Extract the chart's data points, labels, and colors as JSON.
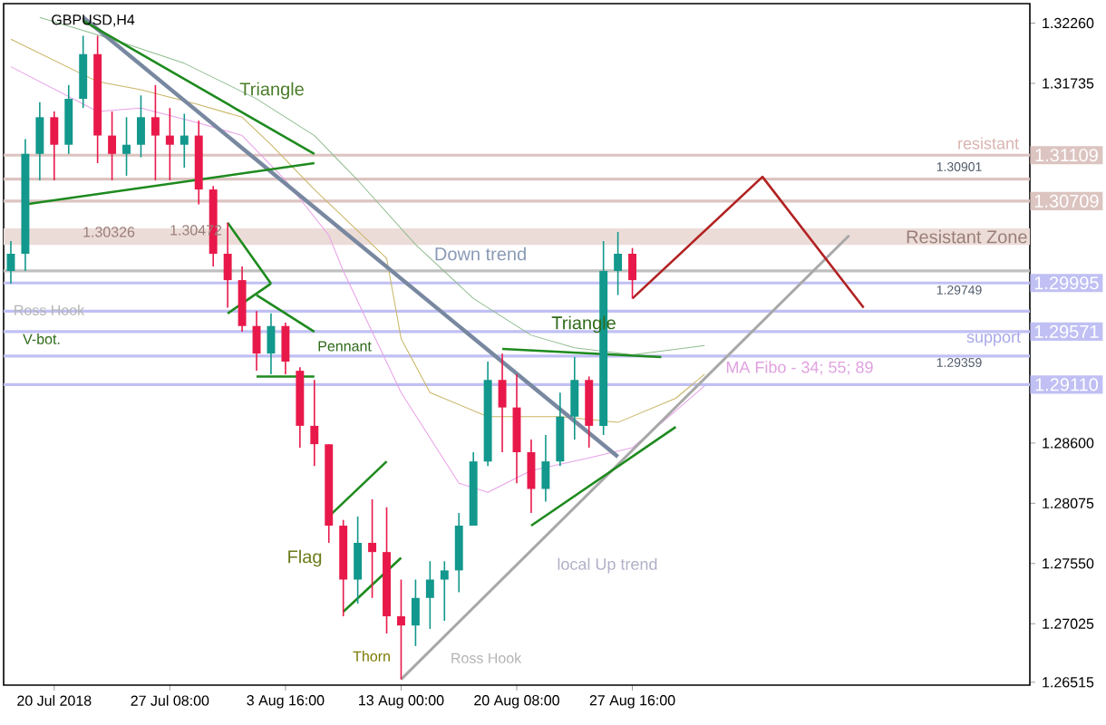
{
  "chart_data": {
    "type": "candlestick",
    "title": "GBPUSD,H4",
    "categories": [
      null,
      null,
      null,
      "20 Jul 2018",
      null,
      null,
      null,
      null,
      null,
      null,
      null,
      "27 Jul 08:00",
      null,
      null,
      null,
      null,
      null,
      null,
      null,
      "3 Aug 16:00",
      null,
      null,
      null,
      null,
      null,
      null,
      null,
      "13 Aug 00:00",
      null,
      null,
      null,
      null,
      null,
      null,
      null,
      "20 Aug 08:00",
      null,
      null,
      null,
      null,
      null,
      null,
      null,
      "27 Aug 16:00",
      null,
      null,
      null,
      null,
      null,
      null,
      null,
      null,
      null,
      null,
      null,
      null,
      null,
      null,
      null,
      null,
      null,
      null,
      null,
      null,
      null,
      null,
      null,
      null,
      null,
      null,
      null
    ],
    "ohlc": [
      [
        1.301,
        1.3036,
        1.2999,
        1.3025
      ],
      [
        1.3025,
        1.3125,
        1.301,
        1.3112
      ],
      [
        1.3112,
        1.3157,
        1.3089,
        1.3144
      ],
      [
        1.3144,
        1.3149,
        1.3089,
        1.312
      ],
      [
        1.312,
        1.3172,
        1.3112,
        1.316
      ],
      [
        1.316,
        1.3215,
        1.3152,
        1.3199
      ],
      [
        1.3199,
        1.3215,
        1.3104,
        1.3128
      ],
      [
        1.3128,
        1.3149,
        1.3089,
        1.3112
      ],
      [
        1.3112,
        1.3144,
        1.3093,
        1.312
      ],
      [
        1.312,
        1.3163,
        1.3109,
        1.3144
      ],
      [
        1.3144,
        1.3172,
        1.3089,
        1.3128
      ],
      [
        1.3128,
        1.3152,
        1.3089,
        1.312
      ],
      [
        1.312,
        1.3147,
        1.31,
        1.3128
      ],
      [
        1.3128,
        1.3141,
        1.3068,
        1.3081
      ],
      [
        1.3081,
        1.3084,
        1.3014,
        1.3025
      ],
      [
        1.3025,
        1.3052,
        1.2978,
        1.3002
      ],
      [
        1.3002,
        1.3014,
        1.2957,
        1.2962
      ],
      [
        1.2962,
        1.2975,
        1.2923,
        1.2938
      ],
      [
        1.2938,
        1.2973,
        1.292,
        1.2962
      ],
      [
        1.2962,
        1.2965,
        1.292,
        1.2931
      ],
      [
        1.2923,
        1.2926,
        1.2856,
        1.2875
      ],
      [
        1.2875,
        1.2915,
        1.284,
        1.2859
      ],
      [
        1.2859,
        1.2859,
        1.2773,
        1.2788
      ],
      [
        1.2788,
        1.2793,
        1.2709,
        1.2741
      ],
      [
        1.2741,
        1.2796,
        1.272,
        1.2773
      ],
      [
        1.2773,
        1.2811,
        1.2725,
        1.2765
      ],
      [
        1.2765,
        1.2804,
        1.2694,
        1.2709
      ],
      [
        1.2709,
        1.2741,
        1.2654,
        1.2701
      ],
      [
        1.2701,
        1.2741,
        1.2683,
        1.2725
      ],
      [
        1.2725,
        1.2757,
        1.2698,
        1.2741
      ],
      [
        1.2741,
        1.2757,
        1.2705,
        1.2749
      ],
      [
        1.2749,
        1.2799,
        1.273,
        1.2788
      ],
      [
        1.2788,
        1.2852,
        1.2788,
        1.2844
      ],
      [
        1.2844,
        1.2931,
        1.284,
        1.2915
      ],
      [
        1.2915,
        1.2938,
        1.2852,
        1.2891
      ],
      [
        1.2891,
        1.292,
        1.2825,
        1.2852
      ],
      [
        1.2852,
        1.2863,
        1.2799,
        1.282
      ],
      [
        1.282,
        1.2867,
        1.2809,
        1.2844
      ],
      [
        1.2844,
        1.2904,
        1.284,
        1.2883
      ],
      [
        1.2883,
        1.2935,
        1.2863,
        1.2915
      ],
      [
        1.2915,
        1.2918,
        1.2856,
        1.2875
      ],
      [
        1.2875,
        1.3036,
        1.2867,
        1.301
      ],
      [
        1.301,
        1.3044,
        1.2989,
        1.3025
      ],
      [
        1.3025,
        1.303,
        1.2986,
        1.3002
      ],
      null,
      null,
      null,
      null,
      null,
      null,
      null,
      null,
      null,
      null,
      null,
      null,
      null,
      null,
      null,
      null,
      null,
      null,
      null,
      null,
      null,
      null,
      null,
      null,
      null,
      null,
      null
    ],
    "colors": [
      "#12988c",
      "#12988c",
      "#12988c",
      "#e8194a",
      "#12988c",
      "#12988c",
      "#e8194a",
      "#e8194a",
      "#12988c",
      "#12988c",
      "#e8194a",
      "#e8194a",
      "#12988c",
      "#e8194a",
      "#e8194a",
      "#e8194a",
      "#e8194a",
      "#e8194a",
      "#12988c",
      "#e8194a",
      "#e8194a",
      "#e8194a",
      "#e8194a",
      "#e8194a",
      "#12988c",
      "#e8194a",
      "#e8194a",
      "#e8194a",
      "#12988c",
      "#12988c",
      "#12988c",
      "#12988c",
      "#12988c",
      "#12988c",
      "#e8194a",
      "#e8194a",
      "#e8194a",
      "#12988c",
      "#12988c",
      "#12988c",
      "#e8194a",
      "#12988c",
      "#12988c",
      "#e8194a",
      null,
      null,
      null,
      null,
      null,
      null,
      null,
      null,
      null,
      null,
      null,
      null,
      null,
      null,
      null,
      null,
      null,
      null,
      null,
      null,
      null,
      null,
      null,
      null,
      null,
      null,
      null
    ],
    "ylim": [
      1.2649,
      1.3243
    ],
    "yticks": [
      {
        "value": 1.3226,
        "label": "1.32260"
      },
      {
        "value": 1.31735,
        "label": "1.31735"
      },
      {
        "value": 1.286,
        "label": "1.28600"
      },
      {
        "value": 1.28075,
        "label": "1.28075"
      },
      {
        "value": 1.2755,
        "label": "1.27550"
      },
      {
        "value": 1.27025,
        "label": "1.27025"
      },
      {
        "value": 1.26515,
        "label": "1.26515"
      }
    ],
    "series": [
      {
        "type": "line",
        "color": "#8fbc8f",
        "values": [
          null,
          null,
          1.3231,
          null,
          null,
          null,
          null,
          1.3212,
          null,
          null,
          null,
          null,
          1.3191,
          null,
          null,
          null,
          null,
          1.316,
          null,
          null,
          null,
          1.3128,
          null,
          null,
          1.3089,
          null,
          null,
          null,
          1.3033,
          null,
          null,
          null,
          1.2986,
          null,
          null,
          null,
          1.2954,
          null,
          null,
          1.2943,
          null,
          null,
          null,
          1.2937,
          null,
          null,
          null,
          null,
          1.2945,
          null,
          null,
          null,
          null,
          null,
          null,
          null,
          null,
          null,
          null,
          null,
          null,
          null,
          null,
          null,
          null,
          null,
          null,
          null,
          null,
          null,
          null
        ]
      },
      {
        "type": "line",
        "color": "#c8b464",
        "values": [
          1.3212,
          null,
          null,
          null,
          null,
          null,
          1.3175,
          null,
          null,
          1.3168,
          null,
          null,
          null,
          1.3155,
          null,
          null,
          1.3144,
          null,
          1.312,
          null,
          null,
          1.3081,
          null,
          null,
          null,
          null,
          1.3021,
          1.2951,
          null,
          1.2904,
          null,
          null,
          null,
          1.2883,
          null,
          null,
          null,
          null,
          1.2883,
          null,
          null,
          null,
          1.2878,
          null,
          null,
          null,
          1.2899,
          null,
          1.292,
          null,
          null,
          null,
          null,
          null,
          null,
          null,
          null,
          null,
          null,
          null,
          null,
          null,
          null,
          null,
          null,
          null,
          null,
          null,
          null,
          null,
          null
        ]
      },
      {
        "type": "line",
        "color": "#e8a0e8",
        "values": [
          1.3188,
          null,
          null,
          null,
          null,
          null,
          1.3149,
          null,
          null,
          1.3152,
          null,
          null,
          null,
          1.3139,
          null,
          null,
          1.3128,
          null,
          null,
          1.3089,
          null,
          null,
          1.3041,
          1.301,
          null,
          null,
          null,
          1.2904,
          null,
          null,
          null,
          1.2825,
          null,
          1.2817,
          null,
          null,
          1.2836,
          null,
          null,
          null,
          1.2847,
          null,
          null,
          1.2856,
          null,
          null,
          1.2888,
          null,
          1.291,
          null,
          null,
          null,
          null,
          null,
          null,
          null,
          null,
          null,
          null,
          null,
          null,
          null,
          null,
          null,
          null,
          null,
          null,
          null,
          null,
          null,
          null
        ]
      },
      {
        "type": "line",
        "color": "#7888a0",
        "values": [
          null,
          null,
          null,
          null,
          null,
          1.3231,
          null,
          null,
          null,
          null,
          null,
          null,
          null,
          null,
          null,
          null,
          null,
          null,
          null,
          null,
          null,
          null,
          null,
          null,
          null,
          null,
          null,
          null,
          null,
          null,
          null,
          null,
          null,
          null,
          null,
          null,
          null,
          null,
          null,
          null,
          null,
          null,
          1.2848,
          null,
          null,
          null,
          null,
          null,
          null,
          null,
          null,
          null,
          null,
          null,
          null,
          null,
          null,
          null,
          null,
          null,
          null,
          null,
          null,
          null,
          null,
          null,
          null,
          null,
          null,
          null,
          null
        ]
      },
      {
        "type": "line",
        "color": "#a8a8a8",
        "values": [
          null,
          null,
          null,
          null,
          null,
          null,
          null,
          null,
          null,
          null,
          null,
          null,
          null,
          null,
          null,
          null,
          null,
          null,
          null,
          null,
          null,
          null,
          null,
          null,
          null,
          null,
          null,
          1.2654,
          null,
          null,
          null,
          null,
          null,
          null,
          null,
          null,
          null,
          null,
          null,
          null,
          null,
          null,
          null,
          null,
          null,
          null,
          null,
          null,
          null,
          null,
          null,
          null,
          null,
          null,
          null,
          null,
          null,
          null,
          1.3041,
          null,
          null,
          null,
          null,
          null,
          null,
          null,
          null,
          null,
          null,
          null,
          null
        ]
      },
      {
        "type": "line",
        "color": "#b22222",
        "values": [
          null,
          null,
          null,
          null,
          null,
          null,
          null,
          null,
          null,
          null,
          null,
          null,
          null,
          null,
          null,
          null,
          null,
          null,
          null,
          null,
          null,
          null,
          null,
          null,
          null,
          null,
          null,
          null,
          null,
          null,
          null,
          null,
          null,
          null,
          null,
          null,
          null,
          null,
          null,
          null,
          null,
          null,
          null,
          1.2986,
          null,
          null,
          null,
          null,
          null,
          null,
          null,
          null,
          1.3092,
          null,
          null,
          null,
          null,
          null,
          null,
          1.2978,
          null,
          null,
          null,
          null,
          null,
          null,
          null,
          null,
          null,
          null,
          null
        ]
      },
      {
        "type": "line",
        "color": "#1e8a1e",
        "values": [
          null,
          null,
          null,
          null,
          null,
          1.3228,
          null,
          null,
          null,
          null,
          null,
          null,
          null,
          null,
          null,
          null,
          null,
          null,
          null,
          null,
          null,
          1.3112,
          null,
          null,
          null,
          null,
          null,
          null,
          null,
          null,
          null,
          null,
          null,
          null,
          null,
          null,
          null,
          null,
          null,
          null,
          null,
          null,
          null,
          null,
          null,
          null,
          null,
          null,
          null,
          null,
          null,
          null,
          null,
          null,
          null,
          null,
          null,
          null,
          null,
          null,
          null,
          null,
          null,
          null,
          null,
          null,
          null,
          null,
          null,
          null,
          null
        ]
      },
      {
        "type": "line",
        "color": "#1e8a1e",
        "values": [
          null,
          1.3068,
          null,
          null,
          null,
          null,
          null,
          null,
          null,
          null,
          null,
          null,
          null,
          null,
          null,
          null,
          null,
          null,
          null,
          null,
          null,
          1.3104,
          null,
          null,
          null,
          null,
          null,
          null,
          null,
          null,
          null,
          null,
          null,
          null,
          null,
          null,
          null,
          null,
          null,
          null,
          null,
          null,
          null,
          null,
          null,
          null,
          null,
          null,
          null,
          null,
          null,
          null,
          null,
          null,
          null,
          null,
          null,
          null,
          null,
          null,
          null,
          null,
          null,
          null,
          null,
          null,
          null,
          null,
          null,
          null,
          null
        ]
      },
      {
        "type": "line",
        "color": "#1e8a1e",
        "values": [
          null,
          null,
          null,
          null,
          null,
          null,
          null,
          null,
          null,
          null,
          null,
          null,
          null,
          null,
          null,
          1.3052,
          null,
          null,
          1.2999,
          null,
          null,
          null,
          null,
          null,
          null,
          null,
          null,
          null,
          null,
          null,
          null,
          null,
          null,
          null,
          null,
          null,
          null,
          null,
          null,
          null,
          null,
          null,
          null,
          null,
          null,
          null,
          null,
          null,
          null,
          null,
          null,
          null,
          null,
          null,
          null,
          null,
          null,
          null,
          null,
          null,
          null,
          null,
          null,
          null,
          null,
          null,
          null,
          null,
          null,
          null,
          null
        ]
      },
      {
        "type": "line",
        "color": "#1e8a1e",
        "values": [
          null,
          null,
          null,
          null,
          null,
          null,
          null,
          null,
          null,
          null,
          null,
          null,
          null,
          null,
          null,
          1.2973,
          null,
          null,
          1.2999,
          null,
          null,
          null,
          null,
          null,
          null,
          null,
          null,
          null,
          null,
          null,
          null,
          null,
          null,
          null,
          null,
          null,
          null,
          null,
          null,
          null,
          null,
          null,
          null,
          null,
          null,
          null,
          null,
          null,
          null,
          null,
          null,
          null,
          null,
          null,
          null,
          null,
          null,
          null,
          null,
          null,
          null,
          null,
          null,
          null,
          null,
          null,
          null,
          null,
          null,
          null,
          null
        ]
      },
      {
        "type": "line",
        "color": "#1e8a1e",
        "values": [
          null,
          null,
          null,
          null,
          null,
          null,
          null,
          null,
          null,
          null,
          null,
          null,
          null,
          null,
          null,
          null,
          null,
          1.2989,
          null,
          null,
          null,
          1.2957,
          null,
          null,
          null,
          null,
          null,
          null,
          null,
          null,
          null,
          null,
          null,
          null,
          null,
          null,
          null,
          null,
          null,
          null,
          null,
          null,
          null,
          null,
          null,
          null,
          null,
          null,
          null,
          null,
          null,
          null,
          null,
          null,
          null,
          null,
          null,
          null,
          null,
          null,
          null,
          null,
          null,
          null,
          null,
          null,
          null,
          null,
          null,
          null,
          null
        ]
      },
      {
        "type": "line",
        "color": "#1e8a1e",
        "values": [
          null,
          null,
          null,
          null,
          null,
          null,
          null,
          null,
          null,
          null,
          null,
          null,
          null,
          null,
          null,
          null,
          null,
          1.2918,
          null,
          null,
          null,
          1.2918,
          null,
          null,
          null,
          null,
          null,
          null,
          null,
          null,
          null,
          null,
          null,
          null,
          null,
          null,
          null,
          null,
          null,
          null,
          null,
          null,
          null,
          null,
          null,
          null,
          null,
          null,
          null,
          null,
          null,
          null,
          null,
          null,
          null,
          null,
          null,
          null,
          null,
          null,
          null,
          null,
          null,
          null,
          null,
          null,
          null,
          null,
          null,
          null,
          null
        ]
      },
      {
        "type": "line",
        "color": "#1e8a1e",
        "values": [
          null,
          null,
          null,
          null,
          null,
          null,
          null,
          null,
          null,
          null,
          null,
          null,
          null,
          null,
          null,
          null,
          null,
          null,
          null,
          null,
          null,
          null,
          1.2796,
          null,
          null,
          null,
          1.2844,
          null,
          null,
          null,
          null,
          null,
          null,
          null,
          null,
          null,
          null,
          null,
          null,
          null,
          null,
          null,
          null,
          null,
          null,
          null,
          null,
          null,
          null,
          null,
          null,
          null,
          null,
          null,
          null,
          null,
          null,
          null,
          null,
          null,
          null,
          null,
          null,
          null,
          null,
          null,
          null,
          null,
          null,
          null,
          null
        ]
      },
      {
        "type": "line",
        "color": "#1e8a1e",
        "values": [
          null,
          null,
          null,
          null,
          null,
          null,
          null,
          null,
          null,
          null,
          null,
          null,
          null,
          null,
          null,
          null,
          null,
          null,
          null,
          null,
          null,
          null,
          null,
          1.2713,
          null,
          null,
          null,
          1.276,
          null,
          null,
          null,
          null,
          null,
          null,
          null,
          null,
          null,
          null,
          null,
          null,
          null,
          null,
          null,
          null,
          null,
          null,
          null,
          null,
          null,
          null,
          null,
          null,
          null,
          null,
          null,
          null,
          null,
          null,
          null,
          null,
          null,
          null,
          null,
          null,
          null,
          null,
          null,
          null,
          null,
          null,
          null
        ]
      },
      {
        "type": "line",
        "color": "#1e8a1e",
        "values": [
          null,
          null,
          null,
          null,
          null,
          null,
          null,
          null,
          null,
          null,
          null,
          null,
          null,
          null,
          null,
          null,
          null,
          null,
          null,
          null,
          null,
          null,
          null,
          null,
          null,
          null,
          null,
          null,
          null,
          null,
          null,
          null,
          null,
          null,
          1.2942,
          null,
          null,
          null,
          null,
          null,
          null,
          null,
          null,
          null,
          null,
          1.2935,
          null,
          null,
          null,
          null,
          null,
          null,
          null,
          null,
          null,
          null,
          null,
          null,
          null,
          null,
          null,
          null,
          null,
          null,
          null,
          null,
          null,
          null,
          null,
          null,
          null
        ]
      },
      {
        "type": "line",
        "color": "#1e8a1e",
        "values": [
          null,
          null,
          null,
          null,
          null,
          null,
          null,
          null,
          null,
          null,
          null,
          null,
          null,
          null,
          null,
          null,
          null,
          null,
          null,
          null,
          null,
          null,
          null,
          null,
          null,
          null,
          null,
          null,
          null,
          null,
          null,
          null,
          null,
          null,
          null,
          null,
          1.2788,
          null,
          null,
          null,
          null,
          null,
          null,
          null,
          null,
          null,
          1.2874,
          null,
          null,
          null,
          null,
          null,
          null,
          null,
          null,
          null,
          null,
          null,
          null,
          null,
          null,
          null,
          null,
          null,
          null,
          null,
          null,
          null,
          null,
          null,
          null
        ]
      }
    ],
    "bands": [
      {
        "axis": "y",
        "from": 1.30326,
        "to": 1.30472,
        "label": "Resistant Zone",
        "color": "#ecdcd8"
      }
    ],
    "ref_lines": [
      {
        "axis": "y",
        "value": 1.31109,
        "label": "1.31109",
        "color": "#dcc4c0"
      },
      {
        "axis": "y",
        "value": 1.30901,
        "color": "#dcc4c0"
      },
      {
        "axis": "y",
        "value": 1.30709,
        "label": "1.30709",
        "color": "#dcc4c0"
      },
      {
        "axis": "y",
        "value": 1.301,
        "color": "#c0c0c0"
      },
      {
        "axis": "y",
        "value": 1.29995,
        "label": "1.29995",
        "color": "#c0c0f4"
      },
      {
        "axis": "y",
        "value": 1.29749,
        "color": "#c0c0f4"
      },
      {
        "axis": "y",
        "value": 1.29571,
        "label": "1.29571",
        "color": "#c0c0f4"
      },
      {
        "axis": "y",
        "value": 1.29359,
        "color": "#c0c0f4"
      },
      {
        "axis": "y",
        "value": 1.2911,
        "label": "1.29110",
        "color": "#c0c0f4"
      }
    ],
    "annotations": [
      "Triangle",
      "Down trend",
      "Ross Hook",
      "V-bot.",
      "Pennant",
      "Triangle",
      "MA Fibo - 34; 55; 89",
      "resistant",
      "support",
      "1.30901",
      "1.29749",
      "1.29359",
      "1.30326",
      "1.30472",
      "Flag",
      "Thorn",
      "Ross Hook",
      "local  Up trend"
    ]
  }
}
